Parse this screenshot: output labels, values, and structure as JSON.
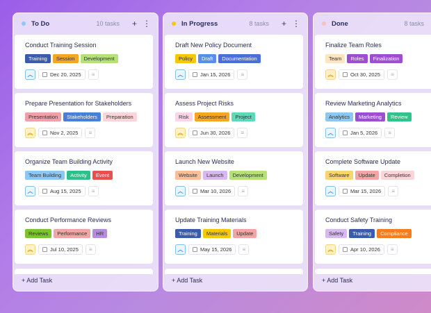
{
  "colors": {
    "accent": "#9a5ee8"
  },
  "columns": [
    {
      "title": "To Do",
      "count": "10 tasks",
      "dot": "#8ec8f0",
      "show_actions": true,
      "cards": [
        {
          "title": "Conduct Training Session",
          "priority": "medium",
          "date": "Dec 20, 2025",
          "tags": [
            {
              "label": "Training",
              "bg": "#3b5bab",
              "fg": "#fff"
            },
            {
              "label": "Session",
              "bg": "#f5a623",
              "fg": "#333"
            },
            {
              "label": "Development",
              "bg": "#b5e07a",
              "fg": "#333"
            }
          ]
        },
        {
          "title": "Prepare Presentation for Stakeholders",
          "priority": "high",
          "date": "Nov 2, 2025",
          "tags": [
            {
              "label": "Presentation",
              "bg": "#f0a0a8",
              "fg": "#333"
            },
            {
              "label": "Stakeholders",
              "bg": "#4a7fd8",
              "fg": "#fff"
            },
            {
              "label": "Preparation",
              "bg": "#fbd5d8",
              "fg": "#333"
            }
          ]
        },
        {
          "title": "Organize Team Building Activity",
          "priority": "medium",
          "date": "Aug 15, 2025",
          "tags": [
            {
              "label": "Team Building",
              "bg": "#8ec8f0",
              "fg": "#333"
            },
            {
              "label": "Activity",
              "bg": "#2bbf8a",
              "fg": "#fff"
            },
            {
              "label": "Event",
              "bg": "#e85050",
              "fg": "#fff"
            }
          ]
        },
        {
          "title": "Conduct Performance Reviews",
          "priority": "high",
          "date": "Jul 10, 2025",
          "tags": [
            {
              "label": "Reviews",
              "bg": "#7ac62a",
              "fg": "#333"
            },
            {
              "label": "Performance",
              "bg": "#f2a5a5",
              "fg": "#333"
            },
            {
              "label": "HR",
              "bg": "#b58ae0",
              "fg": "#333"
            }
          ]
        }
      ]
    },
    {
      "title": "In Progress",
      "count": "8 tasks",
      "dot": "#f5c800",
      "show_actions": true,
      "cards": [
        {
          "title": "Draft New Policy Document",
          "priority": "medium",
          "date": "Jan 15, 2026",
          "tags": [
            {
              "label": "Policy",
              "bg": "#f5c800",
              "fg": "#333"
            },
            {
              "label": "Draft",
              "bg": "#5a8fe8",
              "fg": "#fff"
            },
            {
              "label": "Documentation",
              "bg": "#4a6fd8",
              "fg": "#fff"
            }
          ]
        },
        {
          "title": "Assess Project Risks",
          "priority": "high",
          "date": "Jun 30, 2026",
          "tags": [
            {
              "label": "Risk",
              "bg": "#fbd5e8",
              "fg": "#333"
            },
            {
              "label": "Assessment",
              "bg": "#f5a623",
              "fg": "#333"
            },
            {
              "label": "Project",
              "bg": "#5ed8b8",
              "fg": "#333"
            }
          ]
        },
        {
          "title": "Launch New Website",
          "priority": "medium",
          "date": "Mar 10, 2026",
          "tags": [
            {
              "label": "Website",
              "bg": "#f8c09a",
              "fg": "#333"
            },
            {
              "label": "Launch",
              "bg": "#d8b8f0",
              "fg": "#333"
            },
            {
              "label": "Development",
              "bg": "#b5e07a",
              "fg": "#333"
            }
          ]
        },
        {
          "title": "Update Training Materials",
          "priority": "medium",
          "date": "May 15, 2026",
          "tags": [
            {
              "label": "Training",
              "bg": "#3b5bab",
              "fg": "#fff"
            },
            {
              "label": "Materials",
              "bg": "#f5c800",
              "fg": "#333"
            },
            {
              "label": "Update",
              "bg": "#f2a5a5",
              "fg": "#333"
            }
          ]
        }
      ]
    },
    {
      "title": "Done",
      "count": "8 tasks",
      "dot": "#f8c0c0",
      "show_actions": false,
      "cards": [
        {
          "title": "Finalize Team Roles",
          "priority": "high",
          "date": "Oct 30, 2025",
          "tags": [
            {
              "label": "Team",
              "bg": "#fde5c0",
              "fg": "#333"
            },
            {
              "label": "Roles",
              "bg": "#9b4fd0",
              "fg": "#fff"
            },
            {
              "label": "Finalization",
              "bg": "#9b4fd0",
              "fg": "#fff"
            }
          ]
        },
        {
          "title": "Review Marketing Analytics",
          "priority": "medium",
          "date": "Jan 5, 2026",
          "tags": [
            {
              "label": "Analytics",
              "bg": "#8ec8f0",
              "fg": "#333"
            },
            {
              "label": "Marketing",
              "bg": "#9b4fd0",
              "fg": "#fff"
            },
            {
              "label": "Review",
              "bg": "#2ec48a",
              "fg": "#fff"
            }
          ]
        },
        {
          "title": "Complete Software Update",
          "priority": "medium",
          "date": "Mar 15, 2026",
          "tags": [
            {
              "label": "Software",
              "bg": "#f9d56e",
              "fg": "#333"
            },
            {
              "label": "Update",
              "bg": "#f2a5a5",
              "fg": "#333"
            },
            {
              "label": "Completion",
              "bg": "#fbd5d8",
              "fg": "#333"
            }
          ]
        },
        {
          "title": "Conduct Safety Training",
          "priority": "high",
          "date": "Apr 10, 2026",
          "tags": [
            {
              "label": "Safety",
              "bg": "#d8b8f0",
              "fg": "#333"
            },
            {
              "label": "Training",
              "bg": "#3b5bab",
              "fg": "#fff"
            },
            {
              "label": "Compliance",
              "bg": "#f57c1f",
              "fg": "#fff"
            }
          ]
        }
      ]
    }
  ],
  "add_task_label": "+ Add Task"
}
